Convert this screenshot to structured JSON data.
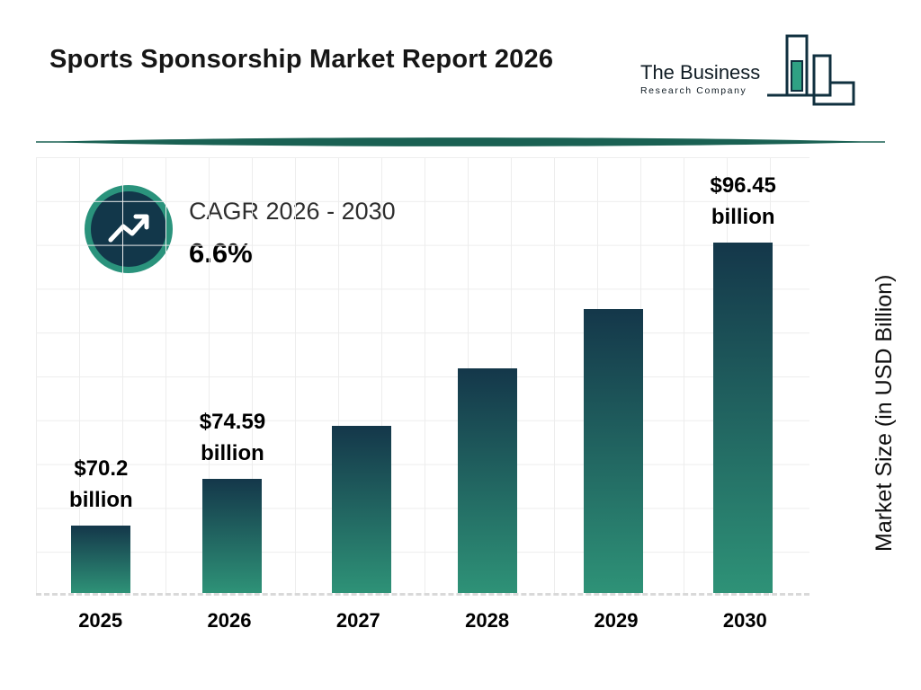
{
  "header": {
    "title": "Sports Sponsorship Market Report 2026",
    "logo": {
      "line1": "The Business",
      "line2": "Research Company"
    }
  },
  "colors": {
    "bar_top": "#14374a",
    "bar_bottom": "#2e9277",
    "badge_ring": "#2a937c",
    "badge_fill": "#12374a",
    "divider": "#1a6153"
  },
  "chart_data": {
    "type": "bar",
    "title": "Sports Sponsorship Market Report 2026",
    "categories": [
      "2025",
      "2026",
      "2027",
      "2028",
      "2029",
      "2030"
    ],
    "values": [
      70.2,
      74.59,
      79.5,
      84.8,
      90.3,
      96.45
    ],
    "bar_labels": [
      [
        "$70.2",
        "billion"
      ],
      [
        "$74.59",
        "billion"
      ],
      null,
      null,
      null,
      [
        "$96.45",
        "billion"
      ]
    ],
    "ylabel": "Market Size (in USD Billion)",
    "xlabel": "",
    "cagr": {
      "label": "CAGR 2026 - 2030",
      "value": "6.6%"
    },
    "grid": true,
    "legend": "none",
    "ylim_effective": [
      64,
      100
    ]
  }
}
